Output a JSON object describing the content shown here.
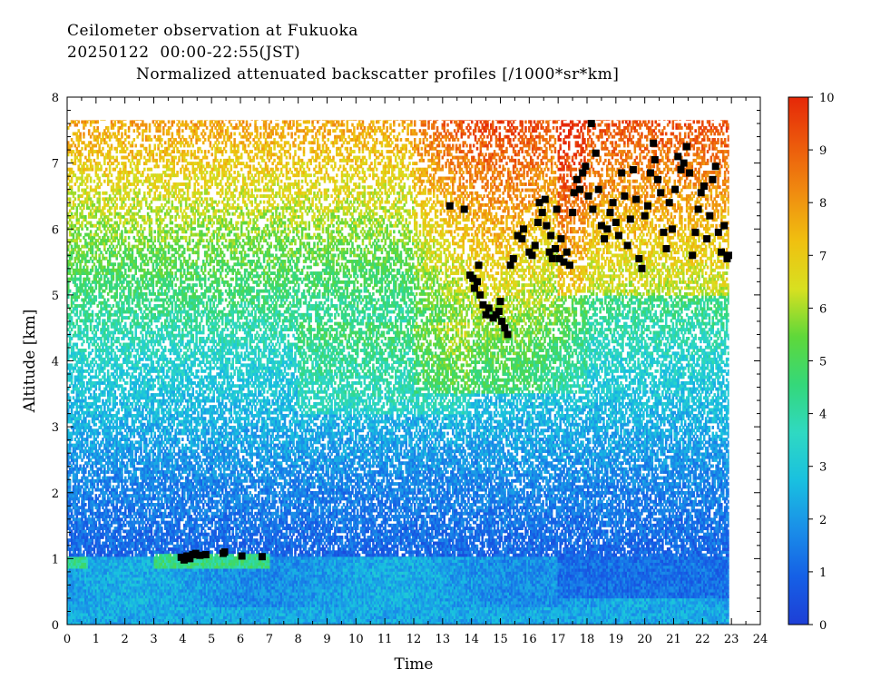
{
  "header": {
    "line1": "Ceilometer observation at Fukuoka",
    "line2": "20250122  00:00-22:55(JST)",
    "line3": "Normalized attenuated backscatter profiles [/1000*sr*km]"
  },
  "chart_data": {
    "type": "heatmap",
    "xlabel": "Time",
    "ylabel": "Altitude [km]",
    "xlim": [
      0,
      24
    ],
    "ylim": [
      0,
      8
    ],
    "x_ticks": [
      "0",
      "1",
      "2",
      "3",
      "4",
      "5",
      "6",
      "7",
      "8",
      "9",
      "10",
      "11",
      "12",
      "13",
      "14",
      "15",
      "16",
      "17",
      "18",
      "19",
      "20",
      "21",
      "22",
      "23",
      "24"
    ],
    "y_ticks": [
      "0",
      "1",
      "2",
      "3",
      "4",
      "5",
      "6",
      "7",
      "8"
    ],
    "data_extent": {
      "x_end": 22.92,
      "y_top": 7.65
    },
    "colorbar": {
      "min": 0,
      "max": 10,
      "ticks": [
        "0",
        "1",
        "2",
        "3",
        "4",
        "5",
        "6",
        "7",
        "8",
        "9",
        "10"
      ],
      "colors": [
        "#1e3fd6",
        "#1560e6",
        "#1a8fe8",
        "#19c0e0",
        "#2fd9c2",
        "#34d87a",
        "#5ed83a",
        "#d8e020",
        "#f0c010",
        "#f08c10",
        "#ec5a0c",
        "#e52808"
      ]
    },
    "cloud_base_color": "#000000",
    "cloud_base_points": [
      [
        3.95,
        1.02
      ],
      [
        4.05,
        0.98
      ],
      [
        4.15,
        1.04
      ],
      [
        4.25,
        1.0
      ],
      [
        4.35,
        1.06
      ],
      [
        4.45,
        1.08
      ],
      [
        4.6,
        1.05
      ],
      [
        4.8,
        1.06
      ],
      [
        5.4,
        1.08
      ],
      [
        5.45,
        1.1
      ],
      [
        6.05,
        1.04
      ],
      [
        6.75,
        1.03
      ],
      [
        13.25,
        6.35
      ],
      [
        13.75,
        6.3
      ],
      [
        13.95,
        5.3
      ],
      [
        14.05,
        5.25
      ],
      [
        14.1,
        5.1
      ],
      [
        14.2,
        5.2
      ],
      [
        14.25,
        5.45
      ],
      [
        14.3,
        5.0
      ],
      [
        14.4,
        4.85
      ],
      [
        14.5,
        4.7
      ],
      [
        14.6,
        4.8
      ],
      [
        14.75,
        4.65
      ],
      [
        14.85,
        4.7
      ],
      [
        14.95,
        4.75
      ],
      [
        15.05,
        4.6
      ],
      [
        15.15,
        4.5
      ],
      [
        15.25,
        4.4
      ],
      [
        15.0,
        4.9
      ],
      [
        15.35,
        5.45
      ],
      [
        15.45,
        5.55
      ],
      [
        15.6,
        5.9
      ],
      [
        15.75,
        5.85
      ],
      [
        15.8,
        6.0
      ],
      [
        16.0,
        5.65
      ],
      [
        16.1,
        5.6
      ],
      [
        16.2,
        5.75
      ],
      [
        16.3,
        6.1
      ],
      [
        16.35,
        6.4
      ],
      [
        16.45,
        6.25
      ],
      [
        16.55,
        6.45
      ],
      [
        16.6,
        6.05
      ],
      [
        16.7,
        5.65
      ],
      [
        16.75,
        5.9
      ],
      [
        16.8,
        5.55
      ],
      [
        16.9,
        5.7
      ],
      [
        16.95,
        6.3
      ],
      [
        17.05,
        5.55
      ],
      [
        17.1,
        5.85
      ],
      [
        17.2,
        5.5
      ],
      [
        17.3,
        5.65
      ],
      [
        17.4,
        5.45
      ],
      [
        17.5,
        6.25
      ],
      [
        17.55,
        6.55
      ],
      [
        17.65,
        6.75
      ],
      [
        17.75,
        6.6
      ],
      [
        17.85,
        6.85
      ],
      [
        17.95,
        6.95
      ],
      [
        18.05,
        6.5
      ],
      [
        18.15,
        7.6
      ],
      [
        18.2,
        6.3
      ],
      [
        18.3,
        7.15
      ],
      [
        18.4,
        6.6
      ],
      [
        18.5,
        6.05
      ],
      [
        18.6,
        5.85
      ],
      [
        18.7,
        6.0
      ],
      [
        18.8,
        6.25
      ],
      [
        18.9,
        6.4
      ],
      [
        19.0,
        6.1
      ],
      [
        19.1,
        5.9
      ],
      [
        19.2,
        6.85
      ],
      [
        19.3,
        6.5
      ],
      [
        19.4,
        5.75
      ],
      [
        19.5,
        6.15
      ],
      [
        19.6,
        6.9
      ],
      [
        19.7,
        6.45
      ],
      [
        19.8,
        5.55
      ],
      [
        19.9,
        5.4
      ],
      [
        20.0,
        6.2
      ],
      [
        20.1,
        6.35
      ],
      [
        20.2,
        6.85
      ],
      [
        20.3,
        7.3
      ],
      [
        20.35,
        7.05
      ],
      [
        20.45,
        6.75
      ],
      [
        20.55,
        6.55
      ],
      [
        20.65,
        5.95
      ],
      [
        20.75,
        5.7
      ],
      [
        20.85,
        6.4
      ],
      [
        20.95,
        6.0
      ],
      [
        21.05,
        6.6
      ],
      [
        21.15,
        7.1
      ],
      [
        21.25,
        6.9
      ],
      [
        21.35,
        7.0
      ],
      [
        21.45,
        7.25
      ],
      [
        21.55,
        6.85
      ],
      [
        21.65,
        5.6
      ],
      [
        21.75,
        5.95
      ],
      [
        21.85,
        6.3
      ],
      [
        21.95,
        6.55
      ],
      [
        22.05,
        6.65
      ],
      [
        22.15,
        5.85
      ],
      [
        22.25,
        6.2
      ],
      [
        22.35,
        6.75
      ],
      [
        22.45,
        6.95
      ],
      [
        22.55,
        5.95
      ],
      [
        22.65,
        5.65
      ],
      [
        22.75,
        6.05
      ],
      [
        22.85,
        5.55
      ],
      [
        22.9,
        5.6
      ]
    ]
  }
}
